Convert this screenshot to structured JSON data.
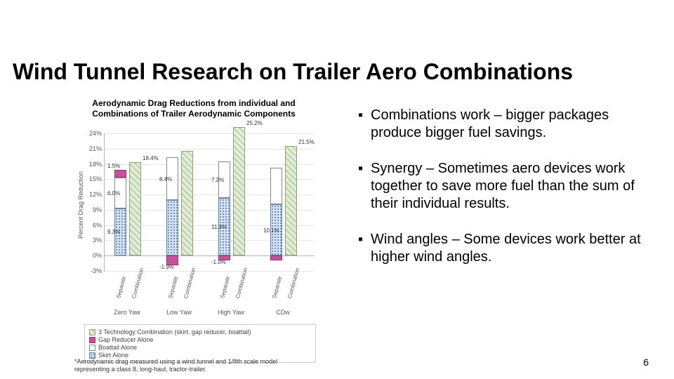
{
  "title": "Wind Tunnel Research on Trailer Aero Combinations",
  "chart": {
    "title": "Aerodynamic Drag Reductions from individual and Combinations of Trailer Aerodynamic Components",
    "ylabel": "Percent Drag Reduction",
    "y_ticks": [
      "-3%",
      "0%",
      "3%",
      "6%",
      "9%",
      "12%",
      "15%",
      "18%",
      "21%",
      "24%"
    ],
    "y_min": -3,
    "y_max": 24,
    "groups": [
      "Zero Yaw",
      "Low Yaw",
      "High Yaw",
      "CDw"
    ],
    "sub_labels": [
      "Separate",
      "Combination"
    ],
    "series": {
      "gap": {
        "label": "Gap Reducer Alone",
        "sep": [
          1.5,
          -1.9,
          -1.0,
          -1.0
        ]
      },
      "boat": {
        "label": "Boattail Alone",
        "sep": [
          6.0,
          8.4,
          7.2,
          7.2
        ]
      },
      "skirt": {
        "label": "Skirt Alone",
        "sep": [
          9.3,
          10.9,
          11.3,
          10.1
        ]
      },
      "combo": {
        "label": "3 Technology Combination (skirt, gap reducer, boattail)",
        "comb": [
          18.4,
          20.6,
          25.2,
          21.5
        ]
      }
    },
    "value_labels": {
      "g0": "1.5%",
      "b0": "6.0%",
      "s0": "9.3%",
      "c0": "18.4%",
      "g1": "-1.9%",
      "b1": "8.4%",
      "s1": "",
      "c1": "",
      "g2": "-1.0%",
      "b2": "7.2%",
      "s2": "11.3%",
      "c2": "25.2%",
      "b3": "",
      "s3": "10.1%",
      "c3": "21.5%"
    },
    "legend": [
      "3 Technology Combination (skirt, gap reducer, boattail)",
      "Gap Reducer Alone",
      "Boattail Alone",
      "Skirt Alone"
    ],
    "colors": {
      "combo_fill": "#c5d8b5",
      "combo_border": "#8aa36f",
      "gap_fill": "#c94f9a",
      "gap_border": "#973771",
      "boat_fill": "#ffffff",
      "boat_border": "#888888",
      "skirt_fill": "#d7e2f1",
      "skirt_border": "#5d82b5",
      "grid": "#e6e6e6",
      "axis": "#b5b5b5"
    }
  },
  "bullets": [
    "Combinations work – bigger packages produce bigger fuel savings.",
    "Synergy – Sometimes aero devices work together to save more fuel than the sum of their individual results.",
    "Wind angles – Some devices work better at higher wind angles."
  ],
  "footnote": "*Aerodynamic drag measured using a wind tunnel and 1/8th scale model representing a class 8, long-haul, tractor-trailer.",
  "page_number": "6"
}
